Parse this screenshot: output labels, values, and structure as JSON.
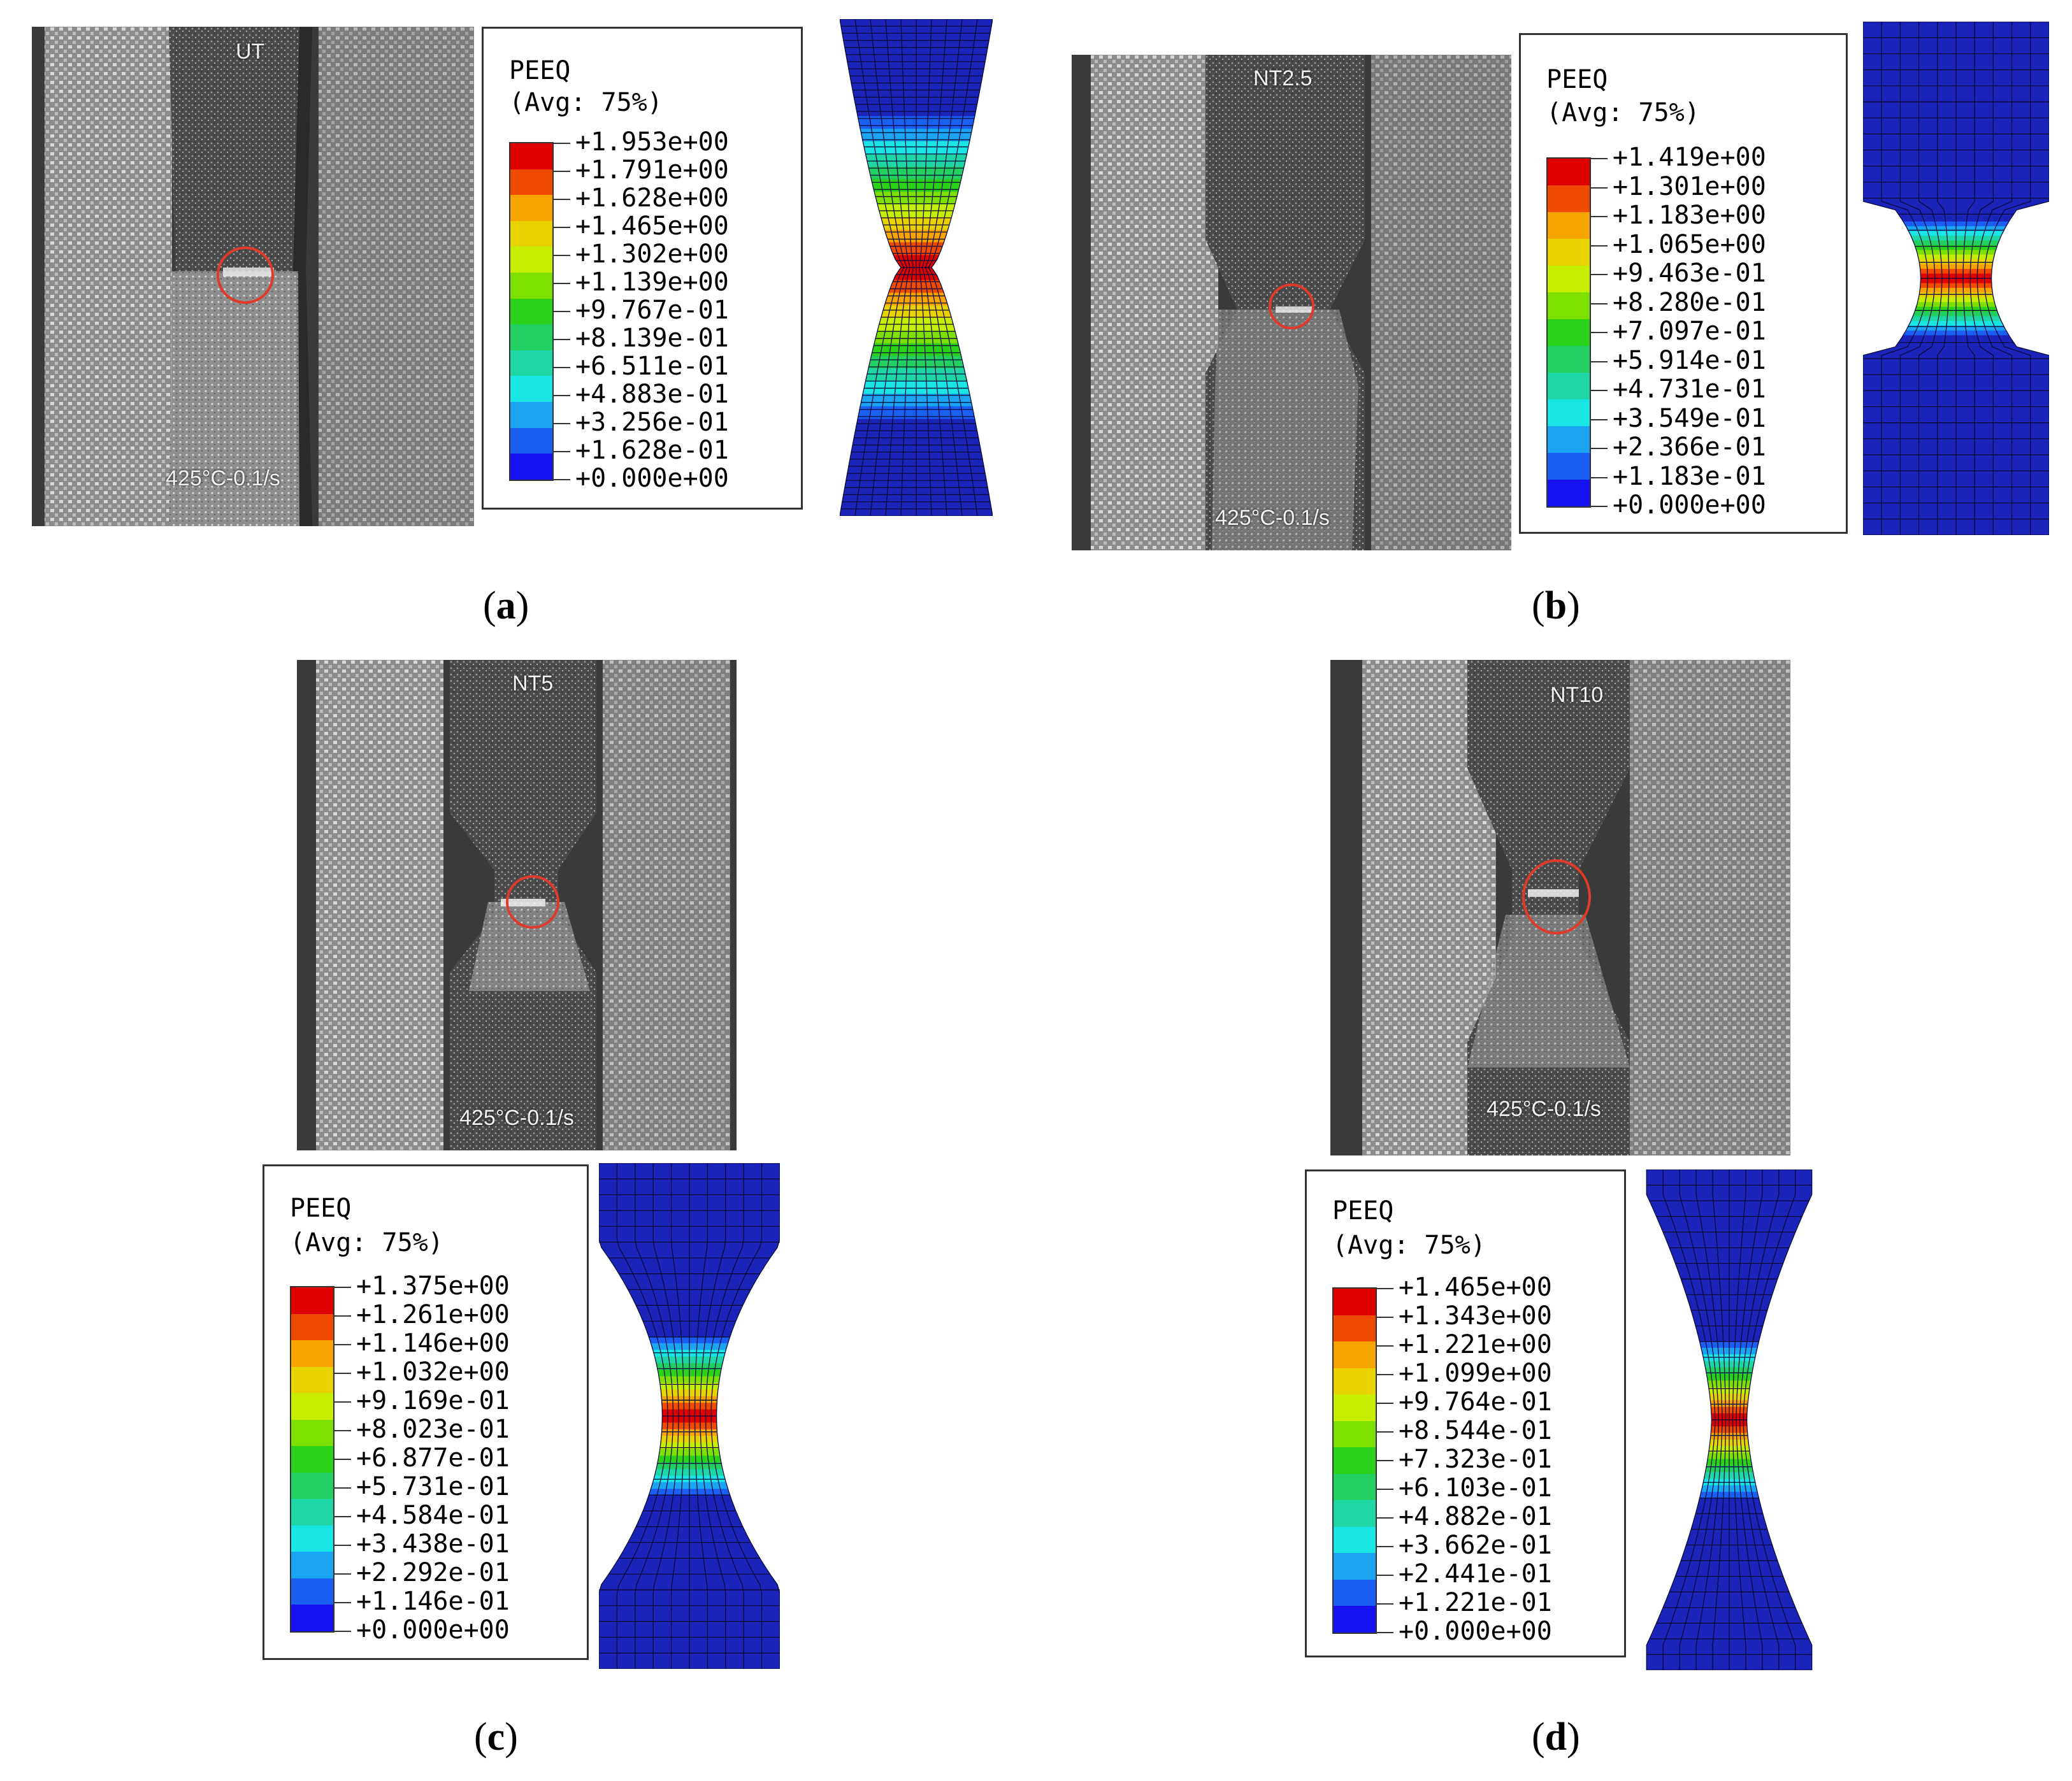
{
  "colorbar_colors": [
    "#e00000",
    "#f04a00",
    "#f7a300",
    "#e8d200",
    "#c6ee00",
    "#7ee000",
    "#2ad21a",
    "#22cf61",
    "#1ed6a6",
    "#19e5e5",
    "#1ba4f2",
    "#1a5ff2",
    "#1612f0"
  ],
  "panels": [
    {
      "id": "a",
      "caption": "a",
      "specimen_label": "UT",
      "condition_label": "425°C-0.1/s",
      "legend_title_1": "PEEQ",
      "legend_title_2": "(Avg: 75%)",
      "legend_values": [
        "+1.953e+00",
        "+1.791e+00",
        "+1.628e+00",
        "+1.465e+00",
        "+1.302e+00",
        "+1.139e+00",
        "+9.767e-01",
        "+8.139e-01",
        "+6.511e-01",
        "+4.883e-01",
        "+3.256e-01",
        "+1.628e-01",
        "+0.000e+00"
      ]
    },
    {
      "id": "b",
      "caption": "b",
      "specimen_label": "NT2.5",
      "condition_label": "425°C-0.1/s",
      "legend_title_1": "PEEQ",
      "legend_title_2": "(Avg: 75%)",
      "legend_values": [
        "+1.419e+00",
        "+1.301e+00",
        "+1.183e+00",
        "+1.065e+00",
        "+9.463e-01",
        "+8.280e-01",
        "+7.097e-01",
        "+5.914e-01",
        "+4.731e-01",
        "+3.549e-01",
        "+2.366e-01",
        "+1.183e-01",
        "+0.000e+00"
      ]
    },
    {
      "id": "c",
      "caption": "c",
      "specimen_label": "NT5",
      "condition_label": "425°C-0.1/s",
      "legend_title_1": "PEEQ",
      "legend_title_2": "(Avg: 75%)",
      "legend_values": [
        "+1.375e+00",
        "+1.261e+00",
        "+1.146e+00",
        "+1.032e+00",
        "+9.169e-01",
        "+8.023e-01",
        "+6.877e-01",
        "+5.731e-01",
        "+4.584e-01",
        "+3.438e-01",
        "+2.292e-01",
        "+1.146e-01",
        "+0.000e+00"
      ]
    },
    {
      "id": "d",
      "caption": "d",
      "specimen_label": "NT10",
      "condition_label": "425°C-0.1/s",
      "legend_title_1": "PEEQ",
      "legend_title_2": "(Avg: 75%)",
      "legend_values": [
        "+1.465e+00",
        "+1.343e+00",
        "+1.221e+00",
        "+1.099e+00",
        "+9.764e-01",
        "+8.544e-01",
        "+7.323e-01",
        "+6.103e-01",
        "+4.882e-01",
        "+3.662e-01",
        "+2.441e-01",
        "+1.221e-01",
        "+0.000e+00"
      ]
    }
  ]
}
